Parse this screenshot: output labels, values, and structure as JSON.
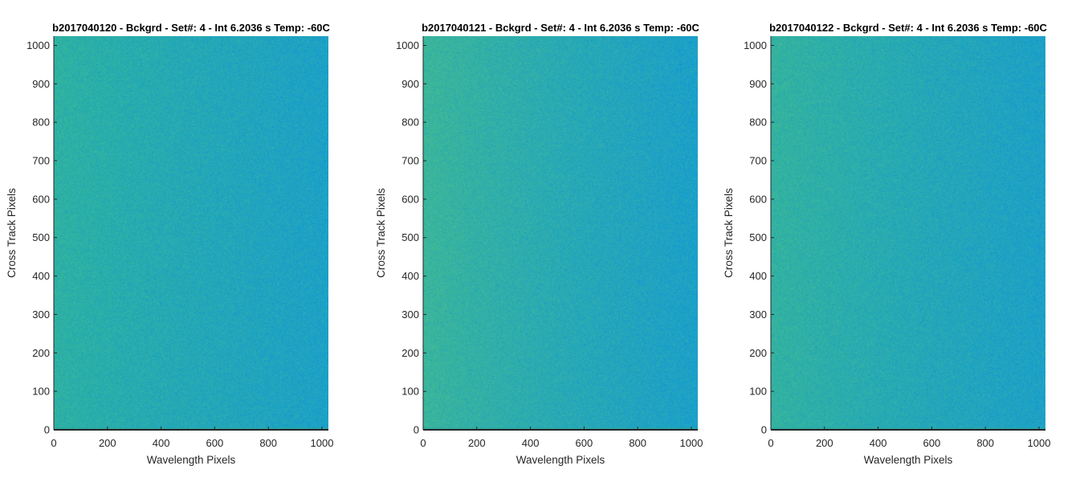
{
  "chart_data": [
    {
      "type": "heatmap",
      "title": "b2017040120 - Bckgrd - Set#: 4 - Int 6.2036 s Temp: -60C",
      "xlabel": "Wavelength Pixels",
      "ylabel": "Cross Track Pixels",
      "xlim": [
        0,
        1024
      ],
      "ylim": [
        0,
        1024
      ],
      "xticks": [
        0,
        200,
        400,
        600,
        800,
        1000
      ],
      "yticks": [
        0,
        100,
        200,
        300,
        400,
        500,
        600,
        700,
        800,
        900,
        1000
      ],
      "grid": false,
      "colormap": "parula",
      "colors": {
        "warm_low_x": "#2fb2a1",
        "cool_high_x": "#1ca0c8",
        "bottom_row": "#2aa39a"
      },
      "gradient_strength": 0.7,
      "seed": 11
    },
    {
      "type": "heatmap",
      "title": "b2017040121 - Bckgrd - Set#: 4 - Int 6.2036 s Temp: -60C",
      "xlabel": "Wavelength Pixels",
      "ylabel": "Cross Track Pixels",
      "xlim": [
        0,
        1024
      ],
      "ylim": [
        0,
        1024
      ],
      "xticks": [
        0,
        200,
        400,
        600,
        800,
        1000
      ],
      "yticks": [
        0,
        100,
        200,
        300,
        400,
        500,
        600,
        700,
        800,
        900,
        1000
      ],
      "grid": false,
      "colormap": "parula",
      "colors": {
        "warm_low_x": "#3ab59c",
        "cool_high_x": "#1ca0c8",
        "bottom_row": "#2aa39a"
      },
      "gradient_strength": 1.0,
      "seed": 23
    },
    {
      "type": "heatmap",
      "title": "b2017040122 - Bckgrd - Set#: 4 - Int 6.2036 s Temp: -60C",
      "xlabel": "Wavelength Pixels",
      "ylabel": "Cross Track Pixels",
      "xlim": [
        0,
        1024
      ],
      "ylim": [
        0,
        1024
      ],
      "xticks": [
        0,
        200,
        400,
        600,
        800,
        1000
      ],
      "yticks": [
        0,
        100,
        200,
        300,
        400,
        500,
        600,
        700,
        800,
        900,
        1000
      ],
      "grid": false,
      "colormap": "parula",
      "colors": {
        "warm_low_x": "#34b39f",
        "cool_high_x": "#1ca0c8",
        "bottom_row": "#2aa39a"
      },
      "gradient_strength": 0.8,
      "seed": 37
    }
  ]
}
